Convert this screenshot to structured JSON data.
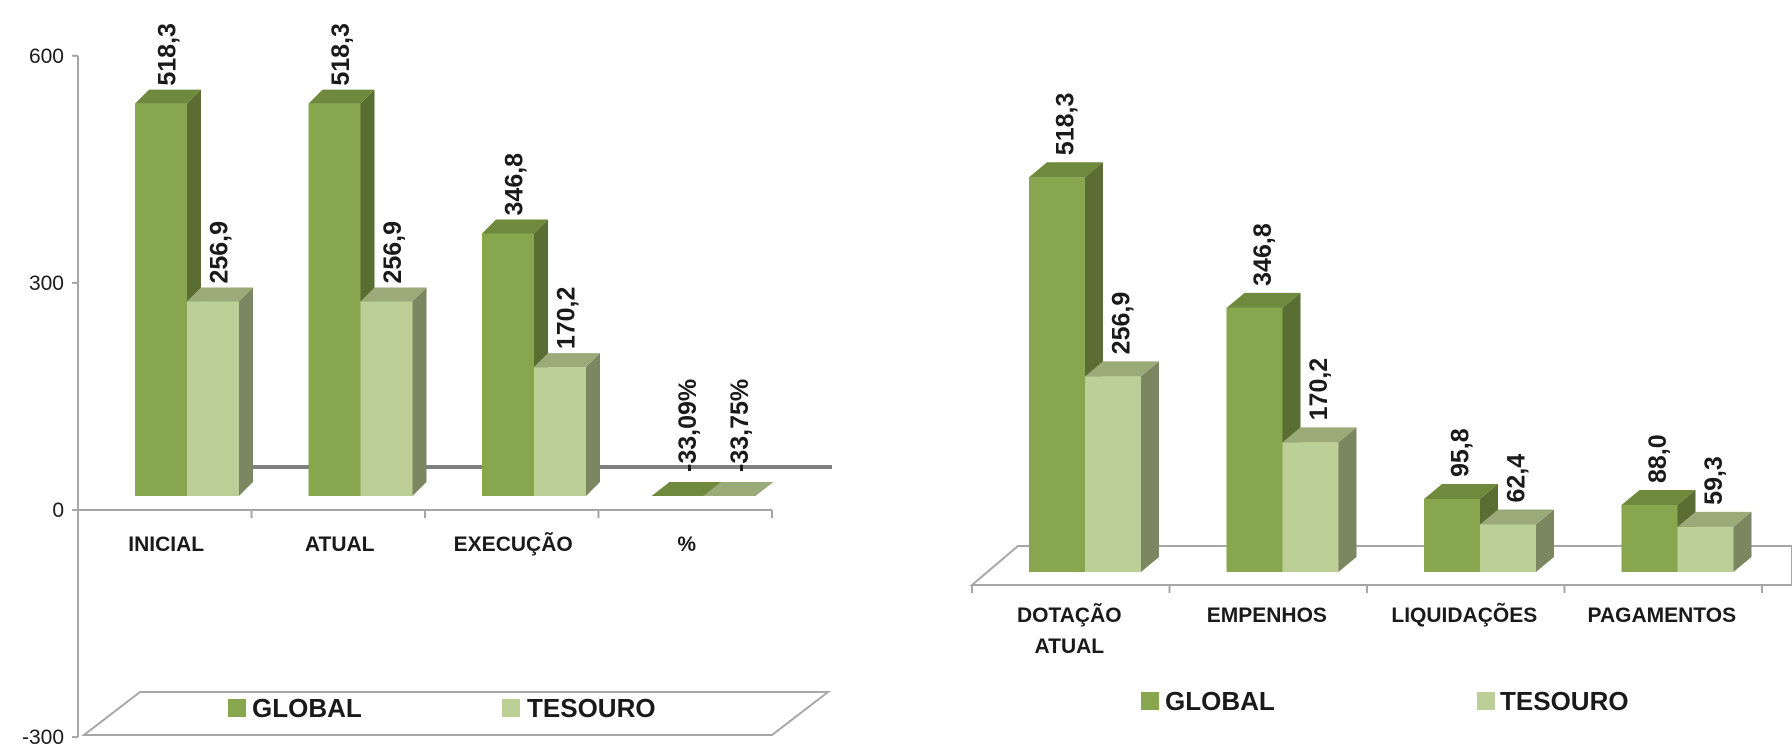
{
  "colors": {
    "global_front": "#87a64e",
    "global_side": "#5a6e33",
    "global_top": "#6f8a3c",
    "tesouro_front": "#bccf96",
    "tesouro_side": "#7b8760",
    "tesouro_top": "#9aab79",
    "axis": "#a6a6a6",
    "wall": "#7f7f7f"
  },
  "chart_data": [
    {
      "type": "bar",
      "title": "",
      "categories": [
        "INICIAL",
        "ATUAL",
        "EXECUÇÃO",
        "%"
      ],
      "series": [
        {
          "name": "GLOBAL",
          "values": [
            518.3,
            518.3,
            346.8,
            -33.09
          ],
          "labels": [
            "518,3",
            "518,3",
            "346,8",
            "-33,09%"
          ]
        },
        {
          "name": "TESOURO",
          "values": [
            256.9,
            256.9,
            170.2,
            -33.75
          ],
          "labels": [
            "256,9",
            "256,9",
            "170,2",
            "-33,75%"
          ]
        }
      ],
      "ylim": [
        -300,
        600
      ],
      "yticks": [
        600,
        300,
        0,
        -300
      ],
      "ytick_labels": [
        "600",
        "300",
        "0",
        "-300"
      ],
      "grid": false,
      "legend": "bottom",
      "legend_entries": [
        "GLOBAL",
        "TESOURO"
      ],
      "note": ""
    },
    {
      "type": "bar",
      "title": "",
      "categories": [
        "DOTAÇÃO ATUAL",
        "EMPENHOS",
        "LIQUIDAÇÕES",
        "PAGAMENTOS"
      ],
      "category_lines": [
        [
          "DOTAÇÃO",
          "ATUAL"
        ],
        [
          "EMPENHOS"
        ],
        [
          "LIQUIDAÇÕES"
        ],
        [
          "PAGAMENTOS"
        ]
      ],
      "series": [
        {
          "name": "GLOBAL",
          "values": [
            518.3,
            346.8,
            95.8,
            88.0
          ],
          "labels": [
            "518,3",
            "346,8",
            "95,8",
            "88,0"
          ]
        },
        {
          "name": "TESOURO",
          "values": [
            256.9,
            170.2,
            62.4,
            59.3
          ],
          "labels": [
            "256,9",
            "170,2",
            "62,4",
            "59,3"
          ]
        }
      ],
      "ylim": [
        0,
        600
      ],
      "grid": false,
      "legend": "bottom",
      "legend_entries": [
        "GLOBAL",
        "TESOURO"
      ]
    }
  ]
}
